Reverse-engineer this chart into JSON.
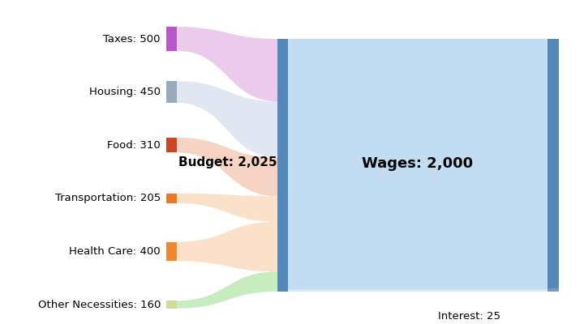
{
  "expenditures": [
    {
      "label": "Taxes",
      "value": 500,
      "color": "#dda0dd",
      "bar_color": "#bb55cc",
      "flow_color": "#dda0dd"
    },
    {
      "label": "Housing",
      "value": 450,
      "color": "#c8d4e8",
      "bar_color": "#9aaac0",
      "flow_color": "#c8d4e8"
    },
    {
      "label": "Food",
      "value": 310,
      "color": "#f0b090",
      "bar_color": "#cc4422",
      "flow_color": "#f0b090"
    },
    {
      "label": "Transportation",
      "value": 205,
      "color": "#f8c8a0",
      "bar_color": "#ee7722",
      "flow_color": "#f8c8a0"
    },
    {
      "label": "Health Care",
      "value": 400,
      "color": "#f8c8a0",
      "bar_color": "#ee8833",
      "flow_color": "#f8c8a0"
    },
    {
      "label": "Other Necessities",
      "value": 160,
      "color": "#99dd88",
      "bar_color": "#ccdd99",
      "flow_color": "#99dd88"
    }
  ],
  "income": [
    {
      "label": "Wages",
      "value": 2000,
      "color": "#b8d8f0",
      "bar_color": "#5588bb"
    },
    {
      "label": "Interest",
      "value": 25,
      "color": "#c8e0f0",
      "bar_color": "#7799bb"
    }
  ],
  "budget_label": "Budget: 2,025",
  "wages_label": "Wages: 2,000",
  "interest_label": "Interest: 25",
  "total": 2025,
  "background": "#ffffff"
}
